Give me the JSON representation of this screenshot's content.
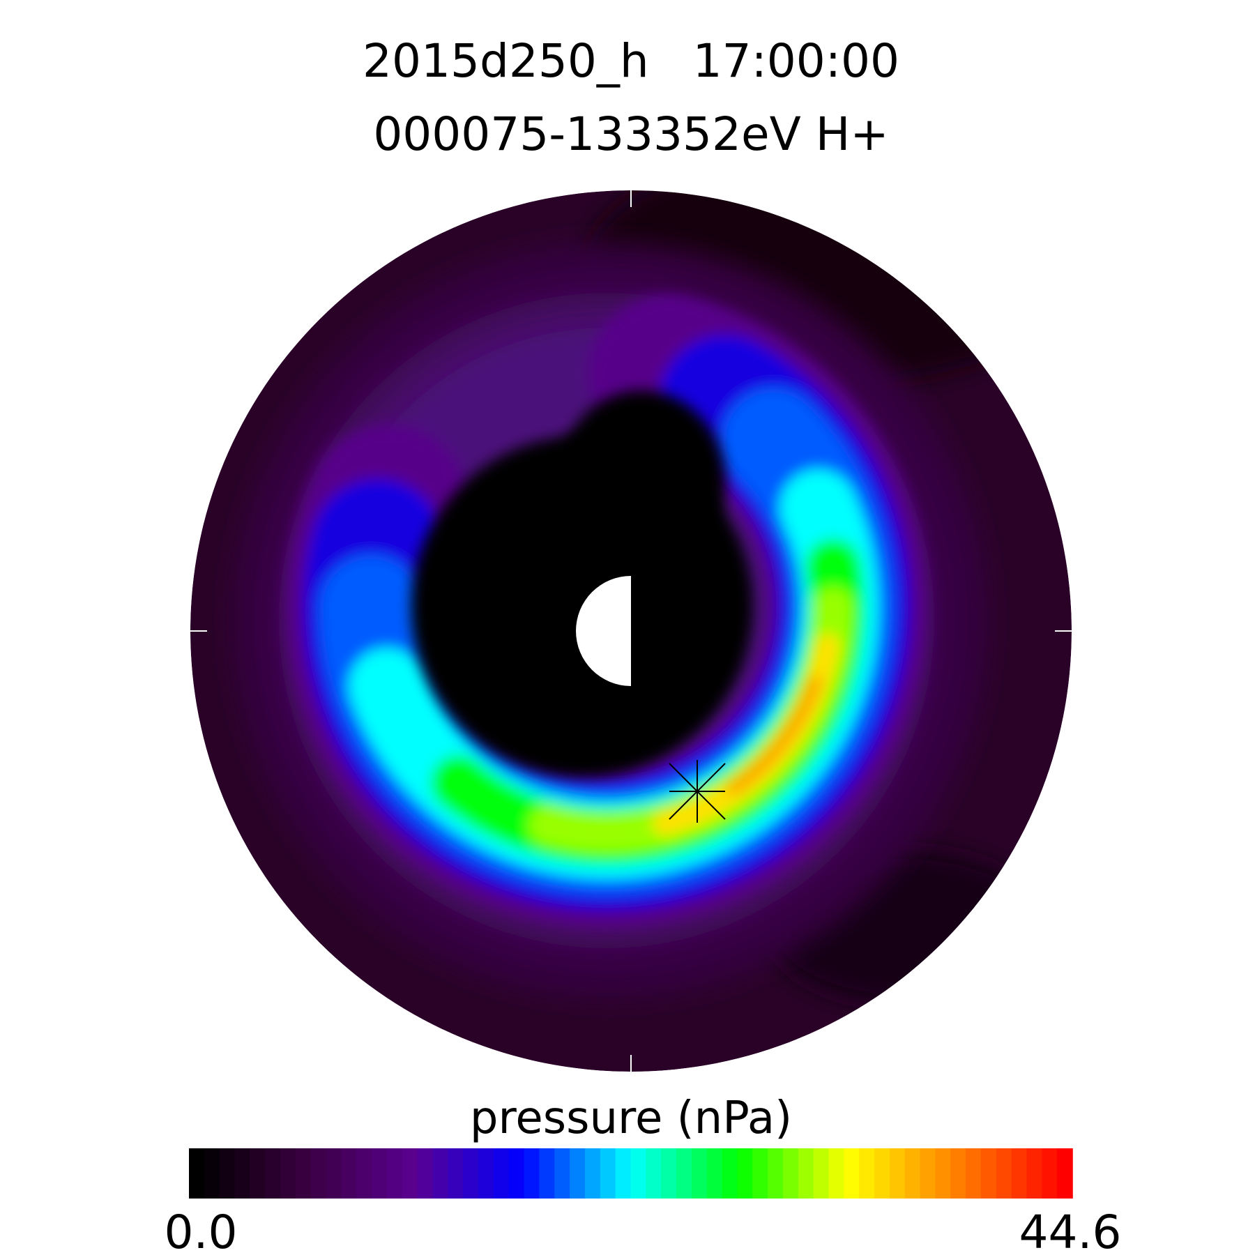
{
  "chart_data": {
    "type": "heatmap",
    "title": "2015d250_h   17:00:00",
    "subtitle": "000075-133352eV H+",
    "colorbar": {
      "label": "pressure (nPa)",
      "min_label": "0.0",
      "max_label": "44.6",
      "range": [
        0,
        44.6
      ],
      "colormap_stops": [
        "#000000",
        "#3a0040",
        "#5a0090",
        "#0000ff",
        "#00ffff",
        "#00ff00",
        "#ffff00",
        "#ff8000",
        "#ff0000"
      ],
      "levels": 58
    },
    "projection": "polar (equatorial plane)",
    "peak_region": "dusk-to-midnight sector, partial ring",
    "marker": "asterisk"
  }
}
